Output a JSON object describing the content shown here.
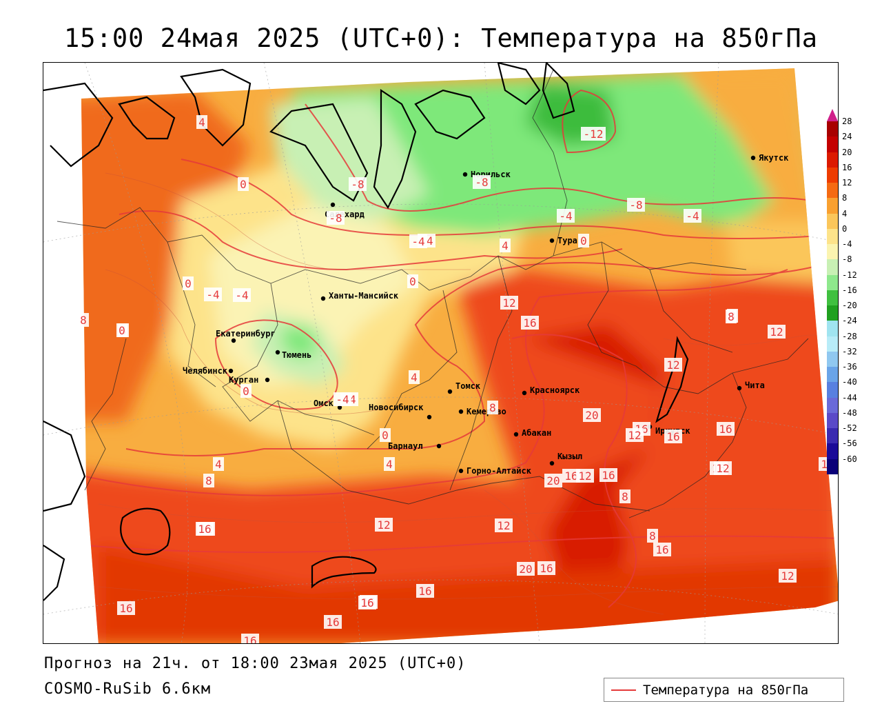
{
  "title": "15:00 24мая 2025 (UTC+0): Температура на 850гПа",
  "footer": {
    "forecast": "Прогноз на 21ч. от 18:00 23мая 2025 (UTC+0)",
    "model": "COSMO-RuSib 6.6км"
  },
  "legend": {
    "label": "Температура на 850гПа",
    "line_color": "#e53a3a"
  },
  "colorbar": {
    "labels": [
      "28",
      "24",
      "20",
      "16",
      "12",
      "8",
      "4",
      "0",
      "-4",
      "-8",
      "-12",
      "-16",
      "-20",
      "-24",
      "-28",
      "-32",
      "-36",
      "-40",
      "-44",
      "-48",
      "-52",
      "-56",
      "-60"
    ],
    "colors": [
      "#a80000",
      "#c40000",
      "#dc1a00",
      "#ee3c00",
      "#f56a12",
      "#f9a030",
      "#fbc65a",
      "#fde38a",
      "#fbf4b0",
      "#c8f0b4",
      "#8ee88c",
      "#40c040",
      "#20a020",
      "#a0e4f0",
      "#b8ecf8",
      "#90c8f0",
      "#6aa4e8",
      "#5880e0",
      "#6a6ad8",
      "#5a4ac8",
      "#3a2ab0",
      "#1a0a98",
      "#0a0078"
    ],
    "top_color": "#d0208a"
  },
  "cities": [
    {
      "name": "Норильск"
    },
    {
      "name": "Якутск"
    },
    {
      "name": "Салехард"
    },
    {
      "name": "Тура"
    },
    {
      "name": "Ханты-Мансийск"
    },
    {
      "name": "Екатеринбург"
    },
    {
      "name": "Тюмень"
    },
    {
      "name": "Челябинск"
    },
    {
      "name": "Курган"
    },
    {
      "name": "Омск"
    },
    {
      "name": "Новосибирск"
    },
    {
      "name": "Томск"
    },
    {
      "name": "Кемерово"
    },
    {
      "name": "Красноярск"
    },
    {
      "name": "Барнаул"
    },
    {
      "name": "Абакан"
    },
    {
      "name": "Иркутск"
    },
    {
      "name": "Чита"
    },
    {
      "name": "Кызыл"
    },
    {
      "name": "Горно-Алтайск"
    }
  ],
  "isolines": [
    "4",
    "-12",
    "0",
    "-8",
    "-8",
    "-8",
    "-8",
    "-4",
    "-4",
    "-4",
    "0",
    "-4",
    "-4",
    "4",
    "0",
    "8",
    "4",
    "0",
    "-4",
    "0",
    "12",
    "16",
    "8",
    "-4",
    "12",
    "8",
    "12",
    "4",
    "-4",
    "0",
    "20",
    "8",
    "16",
    "12",
    "16",
    "16",
    "16",
    "0",
    "4",
    "8",
    "4",
    "12",
    "20",
    "16",
    "12",
    "16",
    "8",
    "12",
    "16",
    "12",
    "12",
    "16",
    "8",
    "20",
    "16",
    "12",
    "16",
    "16",
    "16",
    "16",
    "16",
    "16",
    "12"
  ]
}
